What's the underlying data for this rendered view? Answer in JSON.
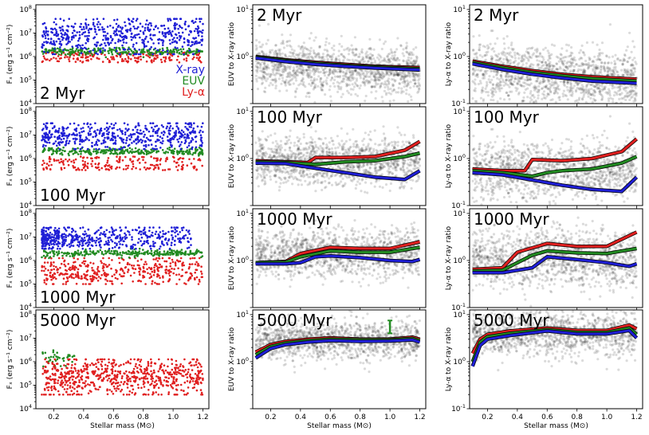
{
  "figure": {
    "xlabel": "Stellar mass (M⊙)",
    "col_ylabels": [
      "Fₓ (erg s⁻¹ cm⁻²)",
      "EUV to X-ray ratio",
      "Ly-α to X-ray ratio"
    ],
    "legend": [
      {
        "label": "X-ray",
        "color": "#1f1fd6"
      },
      {
        "label": "EUV",
        "color": "#228b22"
      },
      {
        "label": "Ly-α",
        "color": "#e02020"
      }
    ],
    "row_titles": [
      "2 Myr",
      "100 Myr",
      "1000 Myr",
      "5000 Myr"
    ]
  },
  "chart_data": [
    {
      "type": "scatter",
      "grid": "3x4 panels",
      "x": {
        "label": "Stellar mass (M⊙)",
        "range": [
          0.08,
          1.24
        ],
        "ticks": [
          0.2,
          0.4,
          0.6,
          0.8,
          1.0,
          1.2
        ],
        "tick_labels": [
          "0.2",
          "0.4",
          "0.6",
          "0.8",
          "1.0",
          "1.2"
        ]
      },
      "columns": [
        {
          "ylabel": "Fₓ (erg s⁻¹ cm⁻²)",
          "yscale": "log",
          "ylim_exp": [
            4,
            8.2
          ],
          "yticks_exp": [
            4,
            5,
            6,
            7,
            8
          ],
          "series": [
            "X-ray",
            "EUV",
            "Ly-α"
          ]
        },
        {
          "ylabel": "EUV to X-ray ratio",
          "yscale": "log",
          "ylim_exp": [
            -1,
            1.1
          ],
          "yticks_exp": [
            0,
            1
          ],
          "series": [
            "ratios (grey points)",
            "median curves"
          ]
        },
        {
          "ylabel": "Ly-α to X-ray ratio",
          "yscale": "log",
          "ylim_exp": [
            -1,
            1.1
          ],
          "yticks_exp": [
            -1,
            0,
            1
          ],
          "series": [
            "ratios (grey points)",
            "median curves"
          ]
        }
      ],
      "rows": [
        {
          "title": "2 Myr",
          "flux_bands_log": {
            "xray": [
              6.1,
              7.6
            ],
            "euv": [
              6.05,
              6.55
            ],
            "lya": [
              5.75,
              6.2
            ]
          },
          "col2_curves": [
            {
              "name": "red",
              "color": "#e02020",
              "x": [
                0.1,
                0.3,
                0.5,
                0.7,
                0.9,
                1.2
              ],
              "y": [
                1.0,
                0.85,
                0.75,
                0.68,
                0.62,
                0.58
              ]
            },
            {
              "name": "green",
              "color": "#228b22",
              "x": [
                0.1,
                0.3,
                0.5,
                0.7,
                0.9,
                1.2
              ],
              "y": [
                0.97,
                0.82,
                0.72,
                0.65,
                0.6,
                0.55
              ]
            },
            {
              "name": "blue",
              "color": "#1f1fd6",
              "x": [
                0.1,
                0.3,
                0.5,
                0.7,
                0.9,
                1.2
              ],
              "y": [
                0.93,
                0.78,
                0.68,
                0.62,
                0.57,
                0.52
              ]
            }
          ],
          "col3_curves": [
            {
              "name": "red",
              "color": "#e02020",
              "x": [
                0.1,
                0.3,
                0.5,
                0.7,
                0.9,
                1.2
              ],
              "y": [
                0.8,
                0.62,
                0.5,
                0.42,
                0.37,
                0.33
              ]
            },
            {
              "name": "green",
              "color": "#228b22",
              "x": [
                0.1,
                0.3,
                0.5,
                0.7,
                0.9,
                1.2
              ],
              "y": [
                0.75,
                0.58,
                0.46,
                0.39,
                0.34,
                0.3
              ]
            },
            {
              "name": "blue",
              "color": "#1f1fd6",
              "x": [
                0.1,
                0.3,
                0.5,
                0.7,
                0.9,
                1.2
              ],
              "y": [
                0.7,
                0.53,
                0.42,
                0.35,
                0.3,
                0.27
              ]
            }
          ],
          "col2_cloud": {
            "center_log": -0.15,
            "spread": 0.25
          },
          "col3_cloud": {
            "center_log": -0.3,
            "spread": 0.3
          }
        },
        {
          "title": "100 Myr",
          "flux_bands_log": {
            "xray": [
              6.4,
              7.5
            ],
            "euv": [
              6.15,
              6.6
            ],
            "lya": [
              5.5,
              6.1
            ]
          },
          "col2_curves": [
            {
              "name": "red",
              "color": "#e02020",
              "x": [
                0.1,
                0.3,
                0.45,
                0.5,
                0.7,
                0.9,
                1.1,
                1.2
              ],
              "y": [
                0.9,
                0.85,
                0.82,
                1.05,
                1.05,
                1.1,
                1.5,
                2.3
              ]
            },
            {
              "name": "green",
              "color": "#228b22",
              "x": [
                0.1,
                0.3,
                0.5,
                0.6,
                0.7,
                0.9,
                1.1,
                1.2
              ],
              "y": [
                0.85,
                0.82,
                0.75,
                0.8,
                0.85,
                0.9,
                1.1,
                1.3
              ]
            },
            {
              "name": "blue",
              "color": "#1f1fd6",
              "x": [
                0.1,
                0.3,
                0.5,
                0.7,
                0.9,
                1.1,
                1.2
              ],
              "y": [
                0.8,
                0.78,
                0.62,
                0.5,
                0.4,
                0.36,
                0.55
              ]
            }
          ],
          "col3_curves": [
            {
              "name": "red",
              "color": "#e02020",
              "x": [
                0.1,
                0.3,
                0.45,
                0.5,
                0.7,
                0.9,
                1.1,
                1.2
              ],
              "y": [
                0.6,
                0.55,
                0.55,
                0.95,
                0.9,
                1.0,
                1.4,
                2.6
              ]
            },
            {
              "name": "green",
              "color": "#228b22",
              "x": [
                0.1,
                0.3,
                0.5,
                0.6,
                0.7,
                0.9,
                1.1,
                1.2
              ],
              "y": [
                0.55,
                0.5,
                0.42,
                0.5,
                0.55,
                0.6,
                0.8,
                1.1
              ]
            },
            {
              "name": "blue",
              "color": "#1f1fd6",
              "x": [
                0.1,
                0.3,
                0.5,
                0.7,
                0.9,
                1.1,
                1.2
              ],
              "y": [
                0.5,
                0.45,
                0.35,
                0.27,
                0.22,
                0.2,
                0.4
              ]
            }
          ],
          "col2_cloud": {
            "center_log": -0.05,
            "spread": 0.25
          },
          "col3_cloud": {
            "center_log": -0.25,
            "spread": 0.3
          }
        },
        {
          "title": "1000 Myr",
          "flux_bands_log": {
            "xray": [
              6.5,
              7.4
            ],
            "euv": [
              6.15,
              6.6
            ],
            "lya": [
              5.0,
              6.1
            ]
          },
          "col2_curves": [
            {
              "name": "red",
              "color": "#e02020",
              "x": [
                0.1,
                0.3,
                0.4,
                0.6,
                0.8,
                1.0,
                1.2
              ],
              "y": [
                0.9,
                0.95,
                1.4,
                1.9,
                1.8,
                1.8,
                2.5
              ]
            },
            {
              "name": "green",
              "color": "#228b22",
              "x": [
                0.1,
                0.3,
                0.4,
                0.6,
                0.8,
                1.0,
                1.2
              ],
              "y": [
                0.9,
                0.92,
                1.2,
                1.6,
                1.5,
                1.5,
                1.9
              ]
            },
            {
              "name": "blue",
              "color": "#1f1fd6",
              "x": [
                0.1,
                0.3,
                0.4,
                0.5,
                0.6,
                0.8,
                1.0,
                1.15,
                1.2
              ],
              "y": [
                0.85,
                0.85,
                0.9,
                1.2,
                1.25,
                1.15,
                1.0,
                0.95,
                1.05
              ]
            }
          ],
          "col3_curves": [
            {
              "name": "red",
              "color": "#e02020",
              "x": [
                0.1,
                0.3,
                0.4,
                0.6,
                0.8,
                1.0,
                1.2
              ],
              "y": [
                0.65,
                0.7,
                1.5,
                2.3,
                2.0,
                2.0,
                4.0
              ]
            },
            {
              "name": "green",
              "color": "#228b22",
              "x": [
                0.1,
                0.3,
                0.5,
                0.6,
                0.8,
                1.0,
                1.2
              ],
              "y": [
                0.6,
                0.62,
                1.3,
                1.6,
                1.45,
                1.4,
                1.8
              ]
            },
            {
              "name": "blue",
              "color": "#1f1fd6",
              "x": [
                0.1,
                0.3,
                0.5,
                0.6,
                0.8,
                1.0,
                1.15,
                1.2
              ],
              "y": [
                0.55,
                0.55,
                0.7,
                1.2,
                1.05,
                0.9,
                0.75,
                0.85
              ]
            }
          ],
          "col2_cloud": {
            "center_log": 0.15,
            "spread": 0.25
          },
          "col3_cloud": {
            "center_log": 0.05,
            "spread": 0.3
          }
        },
        {
          "title": "5000 Myr",
          "flux_bands_log": {
            "xray": [
              5.0,
              6.2
            ],
            "euv": [
              5.8,
              6.5
            ],
            "lya": [
              4.6,
              6.1
            ]
          },
          "col2_curves": [
            {
              "name": "red",
              "color": "#e02020",
              "x": [
                0.1,
                0.2,
                0.3,
                0.45,
                0.6,
                0.8,
                1.0,
                1.15,
                1.2
              ],
              "y": [
                1.6,
                2.3,
                2.7,
                3.0,
                3.2,
                3.0,
                3.0,
                3.3,
                3.0
              ]
            },
            {
              "name": "green",
              "color": "#228b22",
              "x": [
                0.1,
                0.2,
                0.3,
                0.45,
                0.6,
                0.8,
                1.0,
                1.15,
                1.2
              ],
              "y": [
                1.4,
                2.1,
                2.5,
                2.8,
                3.0,
                2.9,
                2.9,
                3.1,
                2.8
              ]
            },
            {
              "name": "blue",
              "color": "#1f1fd6",
              "x": [
                0.1,
                0.2,
                0.3,
                0.45,
                0.6,
                0.8,
                1.0,
                1.15,
                1.2
              ],
              "y": [
                1.2,
                1.9,
                2.3,
                2.6,
                2.8,
                2.7,
                2.75,
                2.9,
                2.6
              ]
            }
          ],
          "col3_curves": [
            {
              "name": "red",
              "color": "#e02020",
              "x": [
                0.1,
                0.15,
                0.2,
                0.35,
                0.6,
                0.8,
                1.0,
                1.15,
                1.2
              ],
              "y": [
                1.5,
                3.0,
                3.8,
                4.5,
                5.2,
                4.6,
                4.6,
                6.0,
                5.0
              ]
            },
            {
              "name": "green",
              "color": "#228b22",
              "x": [
                0.1,
                0.15,
                0.2,
                0.35,
                0.6,
                0.8,
                1.0,
                1.15,
                1.2
              ],
              "y": [
                1.0,
                2.6,
                3.4,
                4.0,
                4.8,
                4.2,
                4.2,
                5.2,
                3.8
              ]
            },
            {
              "name": "blue",
              "color": "#1f1fd6",
              "x": [
                0.1,
                0.15,
                0.2,
                0.35,
                0.6,
                0.8,
                1.0,
                1.15,
                1.2
              ],
              "y": [
                0.8,
                2.2,
                3.0,
                3.6,
                4.5,
                3.9,
                3.9,
                4.6,
                3.2
              ]
            }
          ],
          "col2_cloud": {
            "center_log": 0.45,
            "spread": 0.2
          },
          "col3_cloud": {
            "center_log": 0.6,
            "spread": 0.25
          },
          "col2_errorbar": {
            "x": 1.0,
            "y_low": 4.0,
            "y_high": 7.5,
            "color": "#228b22"
          }
        }
      ]
    }
  ]
}
